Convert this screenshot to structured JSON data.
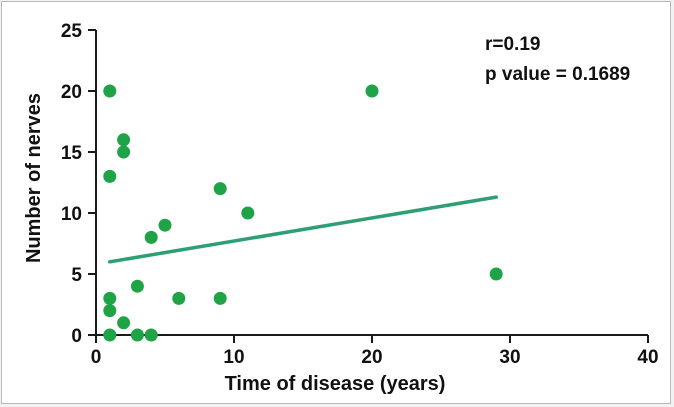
{
  "chart_data": {
    "type": "scatter",
    "title": "",
    "xlabel": "Time of disease (years)",
    "ylabel": "Number of nerves",
    "xlim": [
      0,
      40
    ],
    "ylim": [
      0,
      25
    ],
    "xticks": [
      0,
      10,
      20,
      30,
      40
    ],
    "yticks": [
      0,
      5,
      10,
      15,
      20,
      25
    ],
    "grid": false,
    "colors": {
      "point": "#1fa347",
      "trend": "#2e9e73",
      "axis": "#1a1a1a"
    },
    "annotations": [
      "r=0.19",
      "p value = 0.1689"
    ],
    "points": [
      {
        "x": 1,
        "y": 20
      },
      {
        "x": 1,
        "y": 13
      },
      {
        "x": 2,
        "y": 16
      },
      {
        "x": 2,
        "y": 15
      },
      {
        "x": 1,
        "y": 3
      },
      {
        "x": 1,
        "y": 2
      },
      {
        "x": 1,
        "y": 0
      },
      {
        "x": 2,
        "y": 1
      },
      {
        "x": 3,
        "y": 4
      },
      {
        "x": 3,
        "y": 0
      },
      {
        "x": 4,
        "y": 0
      },
      {
        "x": 4,
        "y": 8
      },
      {
        "x": 5,
        "y": 9
      },
      {
        "x": 6,
        "y": 3
      },
      {
        "x": 9,
        "y": 12
      },
      {
        "x": 9,
        "y": 3
      },
      {
        "x": 11,
        "y": 10
      },
      {
        "x": 20,
        "y": 20
      },
      {
        "x": 29,
        "y": 5
      }
    ],
    "trendline": {
      "x": [
        1,
        29
      ],
      "y": [
        6,
        11.3
      ]
    }
  }
}
